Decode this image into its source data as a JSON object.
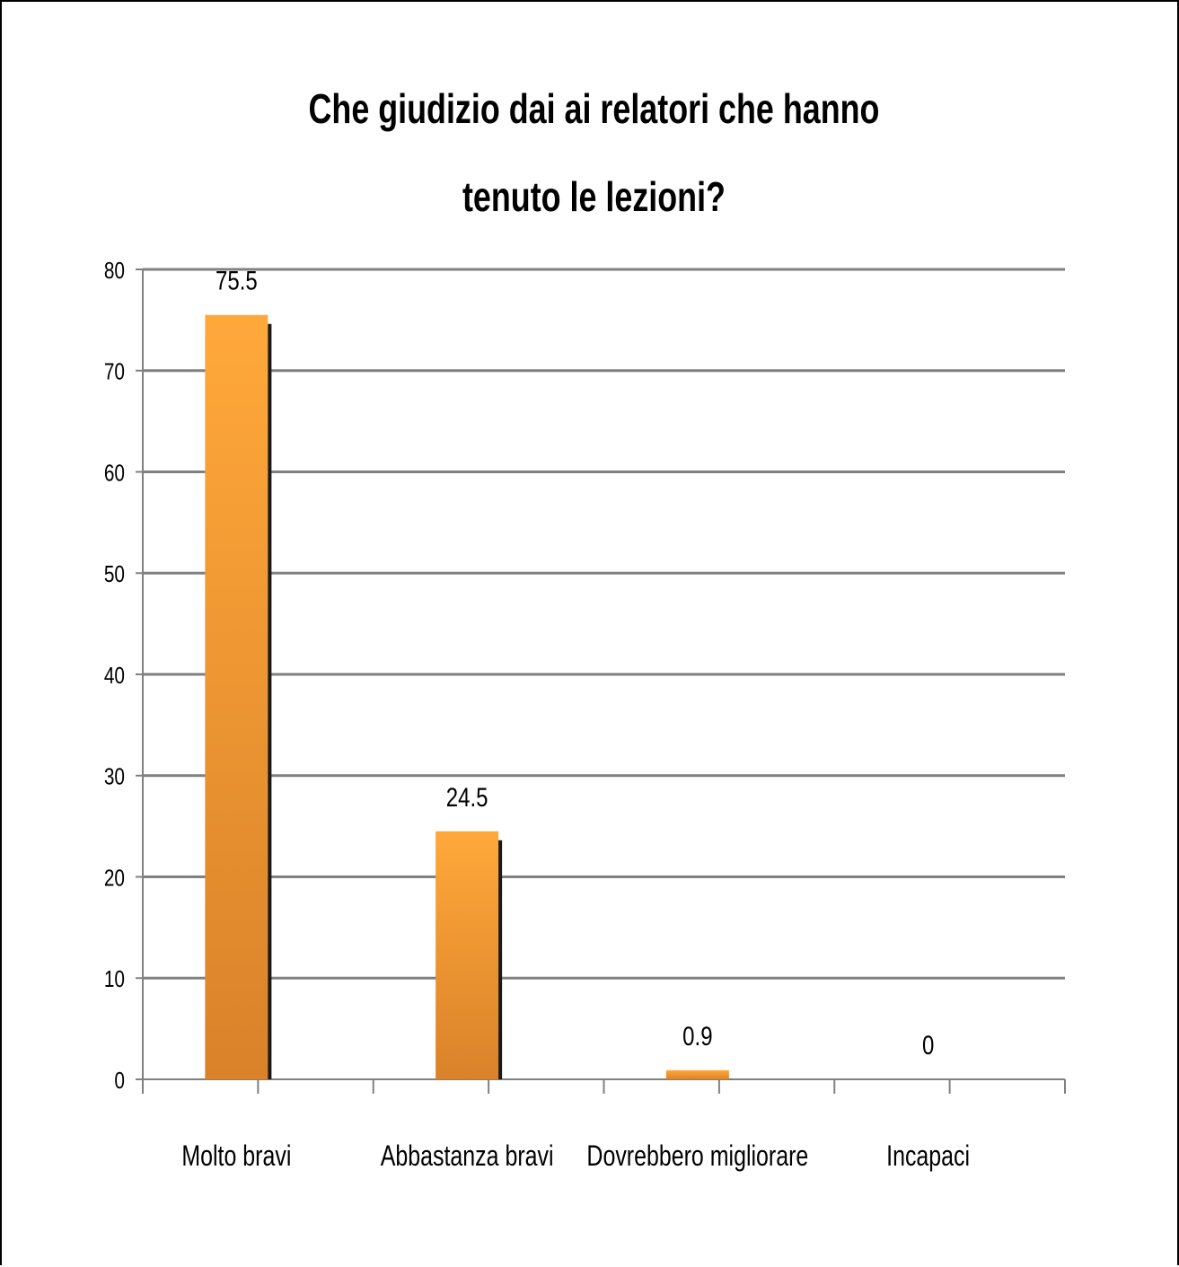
{
  "chart_data": {
    "type": "bar",
    "title_lines": [
      "Che giudizio dai ai relatori che hanno",
      "tenuto le lezioni?"
    ],
    "categories": [
      "Molto bravi",
      "Abbastanza  bravi",
      "Dovrebbero migliorare",
      "Incapaci"
    ],
    "values": [
      75.5,
      24.5,
      0.9,
      0
    ],
    "data_labels": [
      "75.5",
      "24.5",
      "0.9",
      "0"
    ],
    "ylim": [
      0,
      80
    ],
    "yticks": [
      0,
      10,
      20,
      30,
      40,
      50,
      60,
      70,
      80
    ],
    "grid": true,
    "bar_color_top": "#ffa83a",
    "bar_color_bottom": "#d9822a",
    "bar_shadow_color": "#1a1a1a",
    "grid_color": "#808080"
  }
}
